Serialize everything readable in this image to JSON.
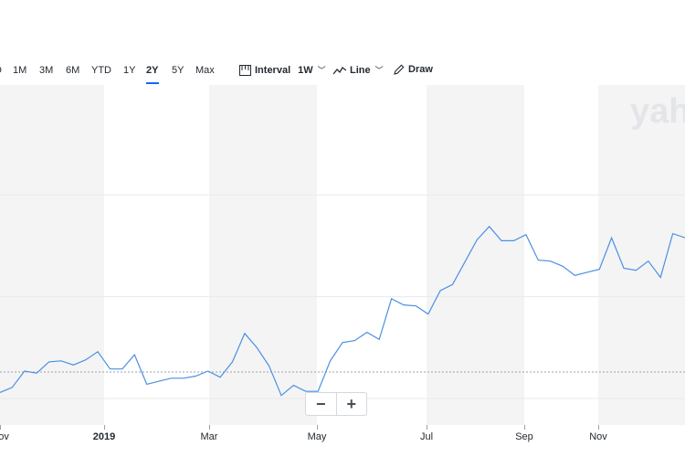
{
  "toolbar": {
    "ranges": [
      {
        "label": "D",
        "active": false
      },
      {
        "label": "1M",
        "active": false
      },
      {
        "label": "3M",
        "active": false
      },
      {
        "label": "6M",
        "active": false
      },
      {
        "label": "YTD",
        "active": false
      },
      {
        "label": "1Y",
        "active": false
      },
      {
        "label": "2Y",
        "active": true
      },
      {
        "label": "5Y",
        "active": false
      },
      {
        "label": "Max",
        "active": false
      }
    ],
    "interval_label": "Interval",
    "interval_value": "1W",
    "chart_type_label": "Line",
    "draw_label": "Draw",
    "icons": {
      "interval": "candlestick-ruler-icon",
      "line": "line-chart-icon",
      "draw": "pencil-icon",
      "caret": "chevron-down-icon"
    }
  },
  "watermark": "yah",
  "zoom": {
    "minus_label": "−",
    "plus_label": "+"
  },
  "chart_data": {
    "type": "line",
    "x_labels": [
      "Nov",
      "2019",
      "Mar",
      "May",
      "Jul",
      "Sep",
      "Nov"
    ],
    "x_label_year": "2019",
    "series": [
      {
        "values": [
          0.06,
          0.11,
          0.27,
          0.25,
          0.36,
          0.37,
          0.33,
          0.38,
          0.46,
          0.29,
          0.29,
          0.43,
          0.14,
          0.17,
          0.2,
          0.2,
          0.22,
          0.27,
          0.21,
          0.36,
          0.64,
          0.5,
          0.32,
          0.03,
          0.13,
          0.07,
          0.07,
          0.37,
          0.55,
          0.57,
          0.65,
          0.58,
          0.98,
          0.92,
          0.91,
          0.83,
          1.06,
          1.12,
          1.34,
          1.56,
          1.69,
          1.55,
          1.55,
          1.61,
          1.36,
          1.35,
          1.3,
          1.21,
          1.24,
          1.27,
          1.58,
          1.28,
          1.26,
          1.35,
          1.19,
          1.62,
          1.58
        ]
      }
    ],
    "y_gridlines": [
      0.0,
      1.0,
      2.0
    ],
    "y_reference": -0.26,
    "ylim": [
      -0.26,
      3.08
    ],
    "grid": true,
    "colors": {
      "line": "#4a90e2",
      "band": "#f4f4f5",
      "gridline": "#e8eaed",
      "reference": "#9aa0a6"
    }
  }
}
